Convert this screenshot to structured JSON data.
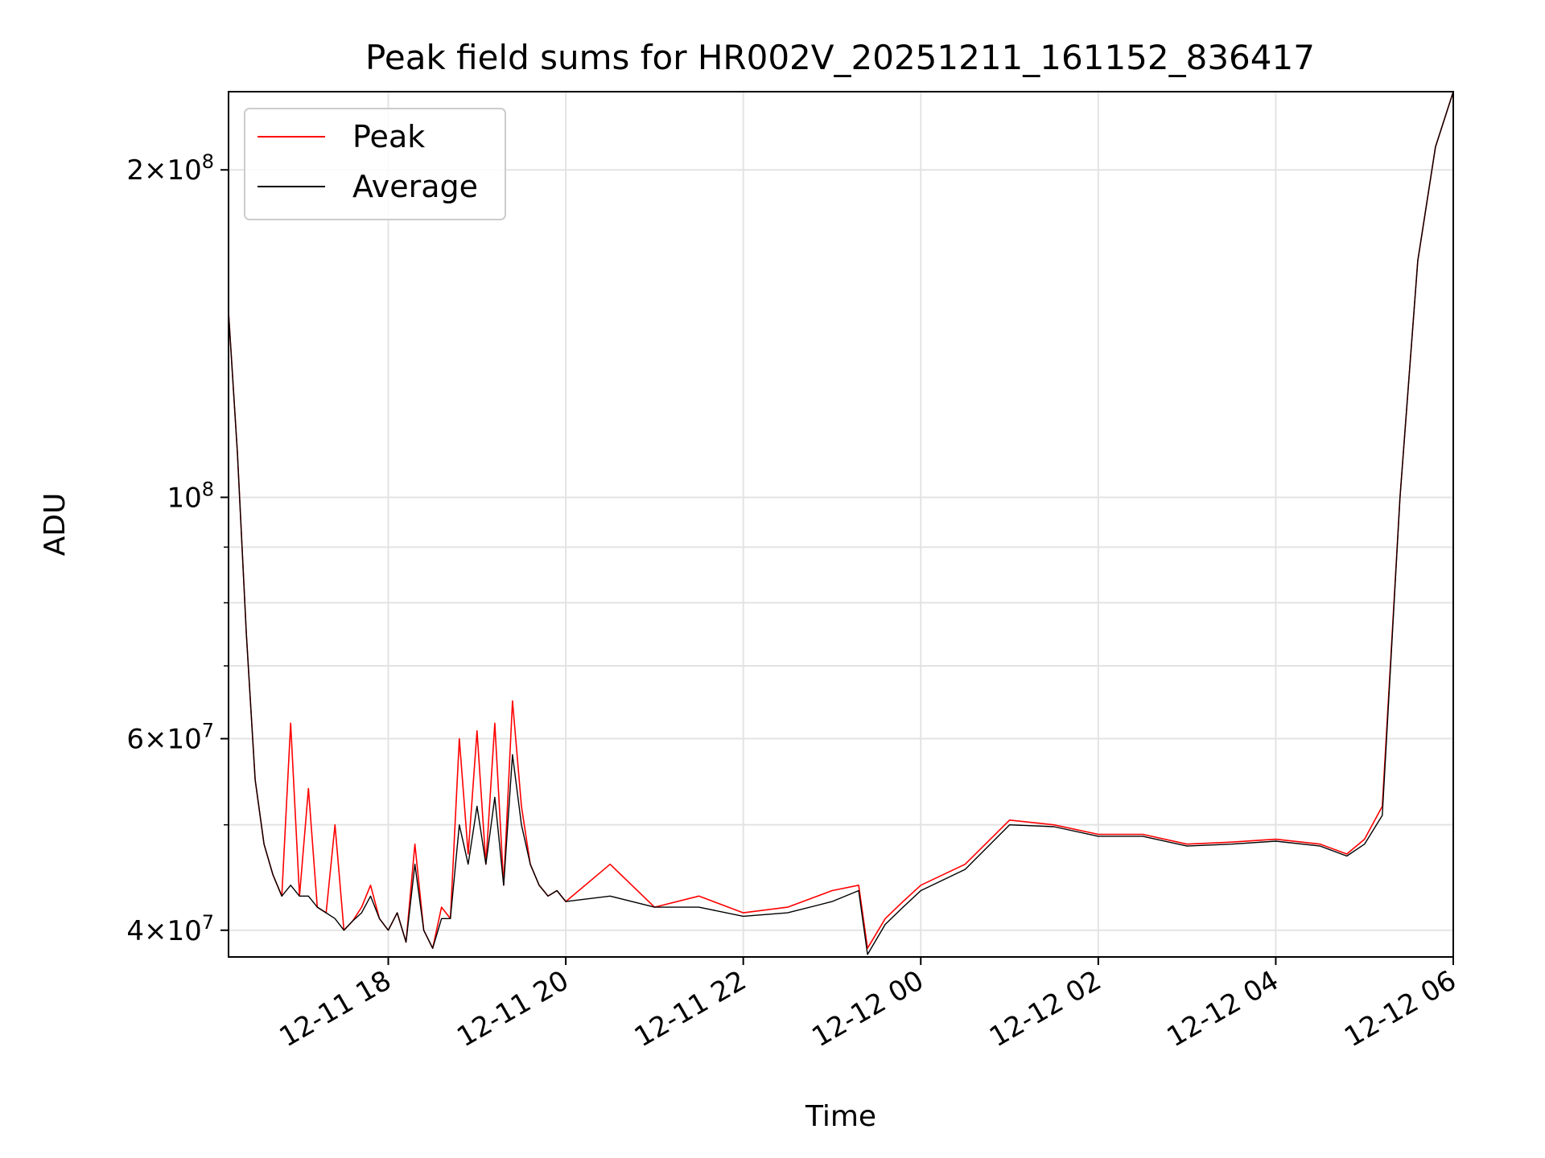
{
  "chart_data": {
    "type": "line",
    "title": "Peak field sums for HR002V_20251211_161152_836417",
    "xlabel": "Time",
    "ylabel": "ADU",
    "y_scale": "log",
    "ylim": [
      37800000,
      236000000
    ],
    "xlim": [
      "2025-12-11 16:12",
      "2025-12-12 06:00"
    ],
    "grid": true,
    "legend_position": "top-left",
    "x_ticks": [
      "2025-12-11 18:00",
      "2025-12-11 20:00",
      "2025-12-11 22:00",
      "2025-12-12 00:00",
      "2025-12-12 02:00",
      "2025-12-12 04:00",
      "2025-12-12 06:00"
    ],
    "x_tick_labels": [
      "12-11 18",
      "12-11 20",
      "12-11 22",
      "12-12 00",
      "12-12 02",
      "12-12 04",
      "12-12 06"
    ],
    "y_ticks": [
      {
        "value": 40000000,
        "mantissa": "4",
        "exp": "7"
      },
      {
        "value": 60000000,
        "mantissa": "6",
        "exp": "7"
      },
      {
        "value": 100000000,
        "mantissa": "",
        "exp": "8"
      },
      {
        "value": 200000000,
        "mantissa": "2",
        "exp": "8"
      }
    ],
    "y_minor_ticks": [
      50000000,
      70000000,
      80000000,
      90000000
    ],
    "x": [
      "2025-12-11 16:12",
      "2025-12-11 16:18",
      "2025-12-11 16:24",
      "2025-12-11 16:30",
      "2025-12-11 16:36",
      "2025-12-11 16:42",
      "2025-12-11 16:48",
      "2025-12-11 16:54",
      "2025-12-11 17:00",
      "2025-12-11 17:06",
      "2025-12-11 17:12",
      "2025-12-11 17:18",
      "2025-12-11 17:24",
      "2025-12-11 17:30",
      "2025-12-11 17:36",
      "2025-12-11 17:42",
      "2025-12-11 17:48",
      "2025-12-11 17:54",
      "2025-12-11 18:00",
      "2025-12-11 18:06",
      "2025-12-11 18:12",
      "2025-12-11 18:18",
      "2025-12-11 18:24",
      "2025-12-11 18:30",
      "2025-12-11 18:36",
      "2025-12-11 18:42",
      "2025-12-11 18:48",
      "2025-12-11 18:54",
      "2025-12-11 19:00",
      "2025-12-11 19:06",
      "2025-12-11 19:12",
      "2025-12-11 19:18",
      "2025-12-11 19:24",
      "2025-12-11 19:30",
      "2025-12-11 19:36",
      "2025-12-11 19:42",
      "2025-12-11 19:48",
      "2025-12-11 19:54",
      "2025-12-11 20:00",
      "2025-12-11 20:30",
      "2025-12-11 21:00",
      "2025-12-11 21:30",
      "2025-12-11 22:00",
      "2025-12-11 22:30",
      "2025-12-11 23:00",
      "2025-12-11 23:18",
      "2025-12-11 23:24",
      "2025-12-11 23:36",
      "2025-12-11 23:48",
      "2025-12-12 00:00",
      "2025-12-12 00:30",
      "2025-12-12 01:00",
      "2025-12-12 01:30",
      "2025-12-12 02:00",
      "2025-12-12 02:30",
      "2025-12-12 03:00",
      "2025-12-12 03:30",
      "2025-12-12 04:00",
      "2025-12-12 04:30",
      "2025-12-12 04:48",
      "2025-12-12 05:00",
      "2025-12-12 05:12",
      "2025-12-12 05:24",
      "2025-12-12 05:36",
      "2025-12-12 05:48",
      "2025-12-12 06:00"
    ],
    "series": [
      {
        "name": "Peak",
        "color": "#ff0000",
        "values": [
          148000000,
          110000000,
          75000000,
          55000000,
          48000000,
          45000000,
          43000000,
          62000000,
          43000000,
          54000000,
          42000000,
          41500000,
          50000000,
          40000000,
          40800000,
          42000000,
          44000000,
          41000000,
          40000000,
          41500000,
          39000000,
          48000000,
          40000000,
          38500000,
          42000000,
          41000000,
          60000000,
          47000000,
          61000000,
          46000000,
          62000000,
          44000000,
          65000000,
          52000000,
          46000000,
          44000000,
          43000000,
          43500000,
          42500000,
          46000000,
          42000000,
          43000000,
          41500000,
          42000000,
          43500000,
          44000000,
          38500000,
          41000000,
          42500000,
          44000000,
          46000000,
          50500000,
          50000000,
          49000000,
          49000000,
          48000000,
          48200000,
          48500000,
          48000000,
          47000000,
          48500000,
          52000000,
          100000000,
          165000000,
          210000000,
          236000000
        ]
      },
      {
        "name": "Average",
        "color": "#000000",
        "values": [
          148000000,
          110000000,
          75000000,
          55000000,
          48000000,
          45000000,
          43000000,
          44000000,
          43000000,
          43000000,
          42000000,
          41500000,
          41000000,
          40000000,
          40800000,
          41500000,
          43000000,
          41000000,
          40000000,
          41500000,
          39000000,
          46000000,
          40000000,
          38500000,
          41000000,
          41000000,
          50000000,
          46000000,
          52000000,
          46000000,
          53000000,
          44000000,
          58000000,
          50000000,
          46000000,
          44000000,
          43000000,
          43500000,
          42500000,
          43000000,
          42000000,
          42000000,
          41200000,
          41500000,
          42500000,
          43500000,
          38000000,
          40500000,
          42000000,
          43500000,
          45500000,
          50000000,
          49800000,
          48800000,
          48800000,
          47800000,
          48000000,
          48300000,
          47800000,
          46800000,
          48000000,
          51000000,
          100000000,
          165000000,
          210000000,
          236000000
        ]
      }
    ]
  }
}
